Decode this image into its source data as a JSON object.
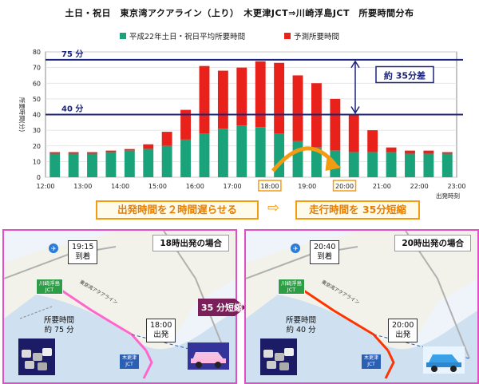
{
  "chart_data": {
    "type": "bar",
    "title": "土日・祝日　東京湾アクアライン（上り）　木更津JCT⇒川崎浮島JCT　所要時間分布",
    "ylabel": "所要時間(分)",
    "xlabel": "出発時刻",
    "ylim": [
      0,
      80
    ],
    "yticks": [
      "0",
      "10",
      "20",
      "30",
      "40",
      "50",
      "60",
      "70",
      "80"
    ],
    "xticks": [
      "12:00",
      "13:00",
      "14:00",
      "15:00",
      "16:00",
      "17:00",
      "18:00",
      "19:00",
      "20:00",
      "21:00",
      "22:00",
      "23:00"
    ],
    "series": [
      {
        "name": "平成22年土日・祝日平均所要時間",
        "color": "#1aa37a",
        "values": [
          15,
          15,
          15,
          16,
          17,
          18,
          20,
          24,
          28,
          31,
          33,
          32,
          28,
          23,
          19,
          17,
          16,
          16,
          16,
          15,
          15,
          15
        ]
      },
      {
        "name": "予測所要時間",
        "color": "#e8221b",
        "values": [
          16,
          16,
          16,
          17,
          18,
          21,
          29,
          43,
          71,
          68,
          70,
          74,
          73,
          65,
          60,
          50,
          40,
          30,
          19,
          17,
          17,
          16
        ]
      }
    ],
    "reference_lines": [
      {
        "value": 75,
        "label": "75 分"
      },
      {
        "value": 40,
        "label": "40 分"
      }
    ],
    "annotation": "約 35分差",
    "highlighted_ticks": [
      "18:00",
      "20:00"
    ]
  },
  "banner": {
    "left": "出発時間を２時間遅らせる",
    "arrow": "⇨",
    "right": "走行時間を 35分短縮"
  },
  "panels": {
    "left": {
      "title": "18時出発の場合",
      "arrival": [
        "19:15",
        "到着"
      ],
      "departure": [
        "18:00",
        "出発"
      ],
      "duration": [
        "所要時間",
        "約 75 分"
      ]
    },
    "right": {
      "title": "20時出発の場合",
      "arrival": [
        "20:40",
        "到着"
      ],
      "departure": [
        "20:00",
        "出発"
      ],
      "duration": [
        "所要時間",
        "約 40 分"
      ]
    },
    "shorten_label": "35 分短縮",
    "map_labels": {
      "kawasaki_jct": [
        "川崎浮島",
        "JCT"
      ],
      "kisarazu_jct": [
        "木更津",
        "JCT"
      ],
      "route": "東京湾アクアライン"
    }
  },
  "colors": {
    "green": "#1aa37a",
    "red": "#e8221b",
    "navy": "#1a237e",
    "orange": "#f39c12",
    "panel_border": "#e04fc6",
    "route_left": "#ff66cc",
    "route_right": "#ff3300"
  }
}
